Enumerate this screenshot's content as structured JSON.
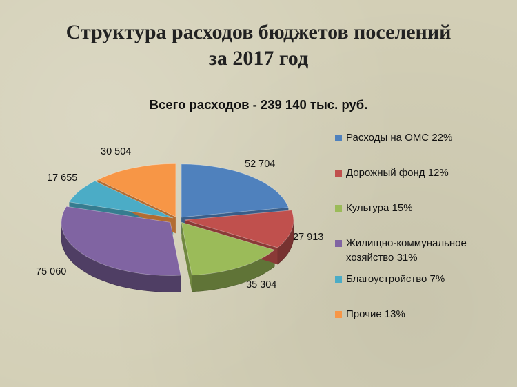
{
  "chart_data": {
    "type": "pie",
    "title": "Структура расходов бюджетов поселений за 2017 год",
    "title_lines": [
      "Структура расходов бюджетов поселений",
      "за 2017 год"
    ],
    "subtitle": "Всего расходов - 239 140 тыс. руб.",
    "legend_position": "right",
    "three_d": true,
    "slices": [
      {
        "label": "Расходы на ОМС 22%",
        "value": 52704,
        "value_label": "52 704",
        "color": "#4f81bd"
      },
      {
        "label": "Дорожный фонд 12%",
        "value": 27913,
        "value_label": "27 913",
        "color": "#c0504d"
      },
      {
        "label": "Культура 15%",
        "value": 35304,
        "value_label": "35 304",
        "color": "#9bbb59"
      },
      {
        "label": "Жилищно-коммунальное хозяйство 31%",
        "value": 75060,
        "value_label": "75 060",
        "color": "#8064a2"
      },
      {
        "label": "Благоустройство 7%",
        "value": 17655,
        "value_label": "17 655",
        "color": "#4bacc6"
      },
      {
        "label": "Прочие 13%",
        "value": 30504,
        "value_label": "30 504",
        "color": "#f79646"
      }
    ]
  }
}
